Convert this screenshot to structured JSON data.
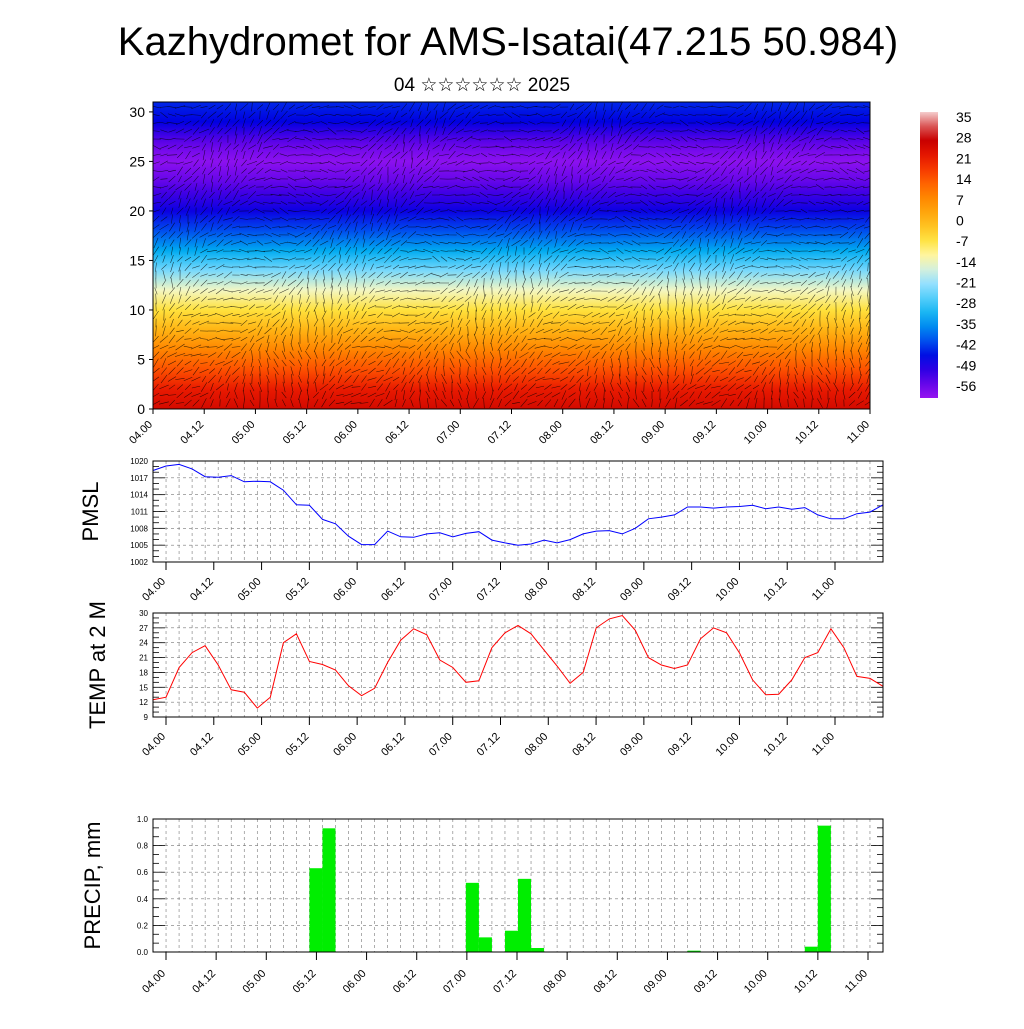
{
  "header": {
    "title": "Kazhydromet for AMS-Isatai(47.215 50.984)",
    "subtitle": "04 ☆☆☆☆☆☆ 2025"
  },
  "colors": {
    "pmsl_line": "#0000ff",
    "temp_line": "#ff0000",
    "precip_bar": "#00ee00"
  },
  "chart_data": [
    {
      "type": "heatmap",
      "name": "vertical-cross-section",
      "ylim": [
        0,
        31
      ],
      "yticks": [
        0,
        5,
        10,
        15,
        20,
        25,
        30
      ],
      "xticks": [
        "04.00",
        "04.12",
        "05.00",
        "05.12",
        "06.00",
        "06.12",
        "07.00",
        "07.12",
        "08.00",
        "08.12",
        "09.00",
        "09.12",
        "10.00",
        "10.12",
        "11.00"
      ],
      "colorbar": {
        "labels": [
          "35",
          "28",
          "21",
          "14",
          "7",
          "0",
          "-7",
          "-14",
          "-21",
          "-28",
          "-35",
          "-42",
          "-49",
          "-56"
        ],
        "range": [
          -63,
          38
        ]
      },
      "levels": [
        0,
        2,
        4,
        6,
        8,
        10,
        12,
        14,
        15,
        16,
        18,
        20,
        22,
        23,
        24,
        25,
        26,
        27,
        28,
        29,
        31
      ],
      "temps": [
        26,
        22,
        15,
        8,
        0,
        -7,
        -15,
        -25,
        -30,
        -35,
        -43,
        -50,
        -55,
        -58,
        -60,
        -62,
        -60,
        -57,
        -53,
        -49,
        -46
      ],
      "grid": false
    },
    {
      "type": "line",
      "name": "pmsl",
      "ylabel": "PMSL",
      "ylim": [
        1002,
        1020
      ],
      "yticks": [
        1002,
        1005,
        1008,
        1011,
        1014,
        1017,
        1020
      ],
      "xticks": [
        "04.00",
        "04.12",
        "05.00",
        "05.12",
        "06.00",
        "06.12",
        "07.00",
        "07.12",
        "08.00",
        "08.12",
        "09.00",
        "09.12",
        "10.00",
        "10.12",
        "11.00"
      ],
      "values": [
        1018.3,
        1019.1,
        1019.4,
        1018.6,
        1017.2,
        1017.1,
        1017.4,
        1016.3,
        1016.4,
        1016.3,
        1014.8,
        1012.2,
        1012.1,
        1009.6,
        1008.8,
        1006.6,
        1005.1,
        1005.1,
        1007.5,
        1006.5,
        1006.4,
        1007.0,
        1007.2,
        1006.5,
        1007.1,
        1007.4,
        1005.9,
        1005.4,
        1005.0,
        1005.2,
        1005.9,
        1005.4,
        1006.0,
        1007.0,
        1007.5,
        1007.6,
        1007.0,
        1008.0,
        1009.7,
        1010.0,
        1010.4,
        1011.8,
        1011.8,
        1011.6,
        1011.8,
        1011.9,
        1012.1,
        1011.5,
        1011.8,
        1011.4,
        1011.7,
        1010.4,
        1009.7,
        1009.7,
        1010.6,
        1010.9,
        1012.2
      ],
      "grid": true
    },
    {
      "type": "line",
      "name": "temp",
      "ylabel": "TEMP at 2 M",
      "ylim": [
        9,
        30
      ],
      "yticks": [
        9,
        12,
        15,
        18,
        21,
        24,
        27,
        30
      ],
      "xticks": [
        "04.00",
        "04.12",
        "05.00",
        "05.12",
        "06.00",
        "06.12",
        "07.00",
        "07.12",
        "08.00",
        "08.12",
        "09.00",
        "09.12",
        "10.00",
        "10.12",
        "11.00"
      ],
      "values": [
        12.5,
        13.0,
        19.0,
        22.0,
        23.4,
        19.5,
        14.5,
        14.0,
        10.8,
        13.0,
        24.0,
        25.8,
        20.2,
        19.6,
        18.5,
        15.3,
        13.3,
        14.8,
        20.0,
        24.5,
        26.8,
        25.6,
        20.5,
        19.0,
        16.0,
        16.3,
        23.0,
        26.0,
        27.5,
        25.8,
        22.5,
        19.3,
        15.8,
        18.0,
        27.0,
        28.8,
        29.5,
        26.5,
        21.0,
        19.5,
        18.8,
        19.5,
        24.8,
        27.0,
        26.0,
        21.9,
        16.5,
        13.5,
        13.6,
        16.5,
        21.0,
        22.0,
        26.8,
        23.0,
        17.2,
        16.8,
        15.2
      ],
      "grid": true
    },
    {
      "type": "bar",
      "name": "precip",
      "ylabel": "PRECIP, mm",
      "ylim": [
        0,
        1
      ],
      "yticks": [
        "0.0",
        "0.2",
        "0.4",
        "0.6",
        "0.8",
        "1.0"
      ],
      "xticks": [
        "04.00",
        "04.12",
        "05.00",
        "05.12",
        "06.00",
        "06.12",
        "07.00",
        "07.12",
        "08.00",
        "08.12",
        "09.00",
        "09.12",
        "10.00",
        "10.12",
        "11.00"
      ],
      "values": [
        0,
        0,
        0,
        0,
        0,
        0,
        0,
        0,
        0,
        0,
        0,
        0,
        0.63,
        0.93,
        0,
        0,
        0,
        0,
        0,
        0,
        0,
        0,
        0,
        0,
        0.52,
        0.11,
        0,
        0.16,
        0.55,
        0.03,
        0,
        0,
        0,
        0,
        0,
        0,
        0,
        0,
        0,
        0,
        0,
        0.01,
        0,
        0,
        0,
        0,
        0,
        0,
        0,
        0,
        0.04,
        0.95,
        0,
        0,
        0,
        0,
        0
      ],
      "grid": true
    }
  ]
}
